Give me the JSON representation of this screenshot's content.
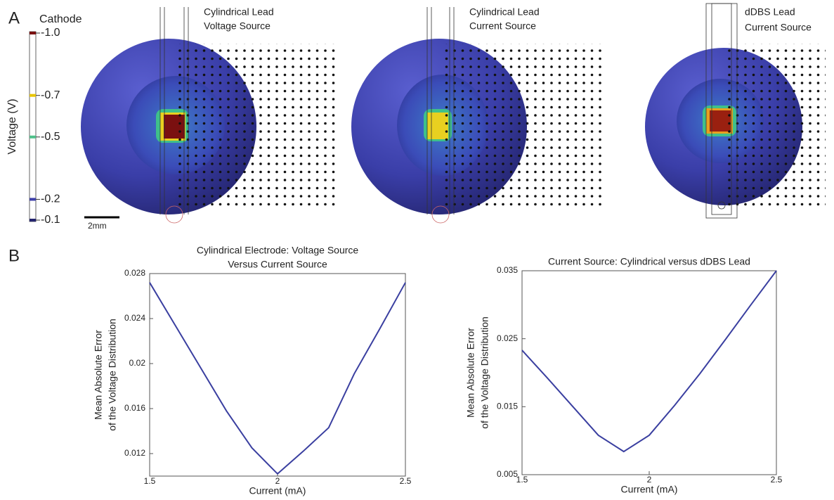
{
  "panel_labels": [
    "A",
    "B"
  ],
  "panel_a": {
    "colorbar": {
      "title": "Cathode",
      "label": "Voltage (V)",
      "lim": [
        -1,
        -0.1
      ],
      "ticks": [
        {
          "value": -1,
          "label": "-1.0"
        },
        -0.7,
        -0.5,
        -0.2,
        -0.1
      ],
      "colors": [
        "#7a1010",
        "#e8c400",
        "#4fc08a",
        "#3d3fa8",
        "#24246e"
      ]
    },
    "scale_bar": "2mm",
    "images": [
      {
        "title": [
          "Cylindrical Lead",
          "Voltage Source"
        ]
      },
      {
        "title": [
          "Cylindrical Lead",
          "Current Source"
        ]
      },
      {
        "title": [
          "dDBS Lead",
          "Current Source"
        ]
      }
    ]
  },
  "chart_data": [
    {
      "type": "line",
      "title": [
        "Cylindrical Electrode: Voltage Source",
        "Versus Current Source"
      ],
      "x_label": "Current (mA)",
      "y_label": [
        "Mean Absolute Error",
        "of the Voltage Distribution"
      ],
      "x": [
        1.5,
        1.6,
        1.7,
        1.8,
        1.9,
        2.0,
        2.1,
        2.2,
        2.3,
        2.4,
        2.5
      ],
      "values": [
        0.0272,
        0.0234,
        0.0196,
        0.0158,
        0.0125,
        0.0102,
        0.0122,
        0.0143,
        0.0191,
        0.0231,
        0.0272
      ],
      "color": "#3a3fa0",
      "xlim": [
        1.5,
        2.5
      ],
      "xticks": [
        1.5,
        2,
        2.5
      ],
      "ylim": [
        0.01,
        0.028
      ],
      "yticks": [
        0.012,
        0.016,
        0.02,
        0.024,
        0.028
      ]
    },
    {
      "type": "line",
      "title": [
        "Current Source: Cylindrical versus dDBS Lead"
      ],
      "x_label": "Current (mA)",
      "y_label": [
        "Mean Absolute Error",
        "of the Voltage Distribution"
      ],
      "x": [
        1.5,
        1.6,
        1.7,
        1.8,
        1.9,
        2.0,
        2.1,
        2.2,
        2.3,
        2.4,
        2.5
      ],
      "values": [
        0.0233,
        0.0192,
        0.015,
        0.0108,
        0.0084,
        0.0108,
        0.0152,
        0.0199,
        0.0249,
        0.03,
        0.035
      ],
      "color": "#3a3fa0",
      "xlim": [
        1.5,
        2.5
      ],
      "xticks": [
        1.5,
        2,
        2.5
      ],
      "ylim": [
        0.005,
        0.035
      ],
      "yticks": [
        0.005,
        0.015,
        0.025,
        0.035
      ]
    }
  ]
}
